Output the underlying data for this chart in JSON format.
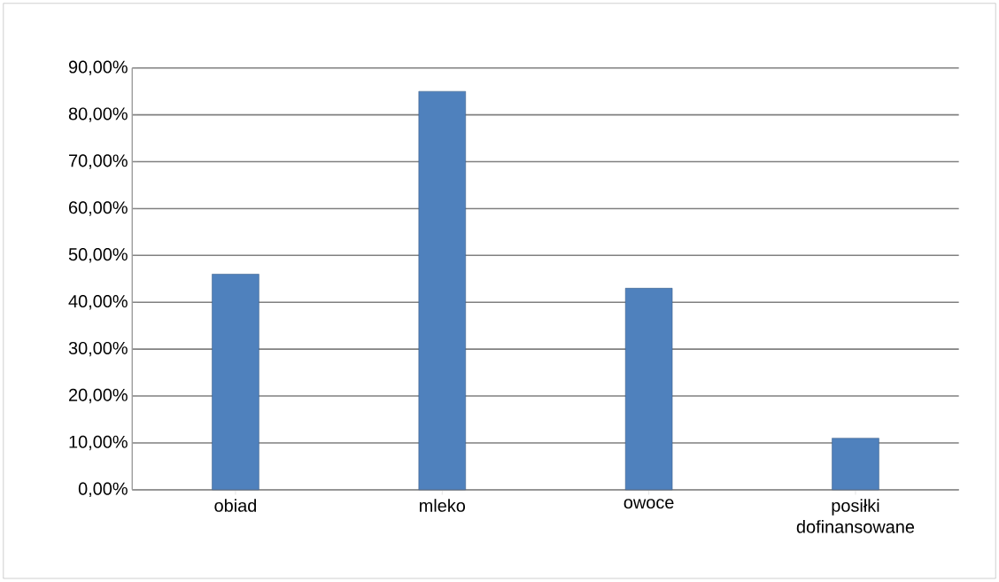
{
  "chart_data": {
    "type": "bar",
    "categories": [
      "obiad",
      "mleko",
      "owoce",
      "posiłki dofinansowane"
    ],
    "values": [
      46,
      85,
      43,
      11
    ],
    "color": "#4f81bd",
    "ylim": [
      0,
      90
    ],
    "yticks": [
      {
        "value": 0,
        "label": "0,00%"
      },
      {
        "value": 10,
        "label": "10,00%"
      },
      {
        "value": 20,
        "label": "20,00%"
      },
      {
        "value": 30,
        "label": "30,00%"
      },
      {
        "value": 40,
        "label": "40,00%"
      },
      {
        "value": 50,
        "label": "50,00%"
      },
      {
        "value": 60,
        "label": "60,00%"
      },
      {
        "value": 70,
        "label": "70,00%"
      },
      {
        "value": 80,
        "label": "80,00%"
      },
      {
        "value": 90,
        "label": "90,00%"
      }
    ],
    "grid": "y"
  }
}
